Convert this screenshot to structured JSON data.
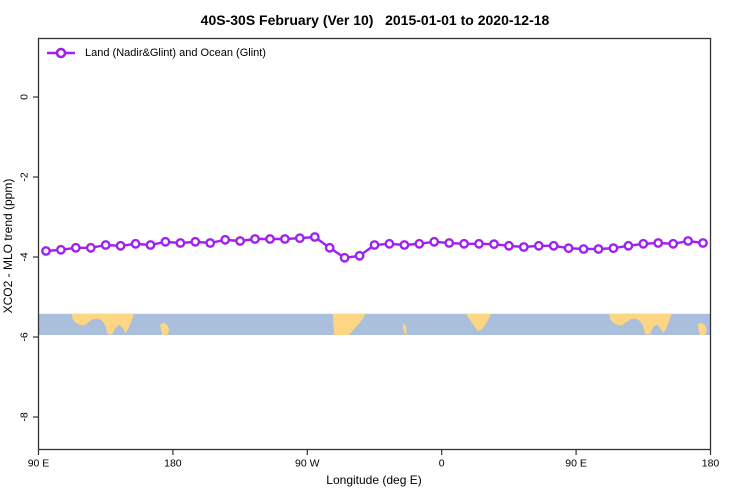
{
  "title": "40S-30S February (Ver 10)   2015-01-01 to 2020-12-18",
  "legend": {
    "label": "Land (Nadir&Glint) and Ocean (Glint)",
    "marker": "open-circle",
    "line_color": "#A020F0"
  },
  "colors": {
    "series": "#A020F0",
    "marker_fill": "#ffffff",
    "ocean": "#a9bfdc",
    "land": "#fdd683",
    "axis": "#333333",
    "text": "#000000"
  },
  "chart_data": {
    "type": "line",
    "title": "40S-30S February (Ver 10)   2015-01-01 to 2020-12-18",
    "xlabel": "Longitude (deg E)",
    "ylabel": "XCO2 - MLO trend (ppm)",
    "xlim": [
      90,
      540
    ],
    "ylim": [
      -8.83,
      1.44
    ],
    "grid": false,
    "legend_position": "top-left",
    "x_ticks": [
      {
        "v": 90,
        "label": "90 E"
      },
      {
        "v": 180,
        "label": "180"
      },
      {
        "v": 270,
        "label": "90 W"
      },
      {
        "v": 360,
        "label": "0"
      },
      {
        "v": 450,
        "label": "90 E"
      },
      {
        "v": 540,
        "label": "180"
      }
    ],
    "y_ticks": [
      {
        "v": 0,
        "label": "0"
      },
      {
        "v": -2,
        "label": "-2"
      },
      {
        "v": -4,
        "label": "-4"
      },
      {
        "v": -6,
        "label": "-6"
      },
      {
        "v": -8,
        "label": "-8"
      }
    ],
    "series": [
      {
        "name": "Land (Nadir&Glint) and Ocean (Glint)",
        "color": "#A020F0",
        "marker": "open-circle",
        "x": [
          95,
          105,
          115,
          125,
          135,
          145,
          155,
          165,
          175,
          185,
          195,
          205,
          215,
          225,
          235,
          245,
          255,
          265,
          275,
          285,
          295,
          305,
          315,
          325,
          335,
          345,
          355,
          365,
          375,
          385,
          395,
          405,
          415,
          425,
          435,
          445,
          455,
          465,
          475,
          485,
          495,
          505,
          515,
          525,
          535
        ],
        "y": [
          -3.85,
          -3.82,
          -3.77,
          -3.77,
          -3.7,
          -3.72,
          -3.67,
          -3.7,
          -3.62,
          -3.65,
          -3.62,
          -3.65,
          -3.57,
          -3.6,
          -3.55,
          -3.55,
          -3.55,
          -3.53,
          -3.5,
          -3.77,
          -4.02,
          -3.97,
          -3.7,
          -3.67,
          -3.7,
          -3.67,
          -3.62,
          -3.65,
          -3.67,
          -3.67,
          -3.68,
          -3.72,
          -3.75,
          -3.72,
          -3.72,
          -3.78,
          -3.8,
          -3.8,
          -3.78,
          -3.72,
          -3.67,
          -3.65,
          -3.67,
          -3.6,
          -3.65
        ]
      }
    ],
    "map_band": {
      "description": "40S-30S latitude strip of world map",
      "y_top": -5.42,
      "y_bottom": -5.95,
      "ocean_color": "#a9bfdc",
      "land_color": "#fdd683",
      "land_polygons": [
        {
          "name": "australia",
          "pts": [
            [
              112,
              0
            ],
            [
              154,
              0
            ],
            [
              152.5,
              0.3
            ],
            [
              150.5,
              0.65
            ],
            [
              148.5,
              0.9
            ],
            [
              146.5,
              0.7
            ],
            [
              144,
              0.5
            ],
            [
              141.5,
              0.65
            ],
            [
              139.5,
              0.95
            ],
            [
              137.5,
              1.0
            ],
            [
              135.8,
              0.9
            ],
            [
              135,
              0.6
            ],
            [
              133,
              0.35
            ],
            [
              130,
              0.22
            ],
            [
              126.5,
              0.25
            ],
            [
              123.5,
              0.4
            ],
            [
              120.5,
              0.55
            ],
            [
              117.5,
              0.52
            ],
            [
              115,
              0.42
            ],
            [
              113,
              0.28
            ]
          ]
        },
        {
          "name": "kangaroo-island",
          "pts": [
            [
              135.8,
              0.56
            ],
            [
              137.6,
              0.56
            ],
            [
              137.2,
              0.78
            ],
            [
              136.1,
              0.8
            ]
          ]
        },
        {
          "name": "new-zealand",
          "pts": [
            [
              171.5,
              0.5
            ],
            [
              174,
              0.42
            ],
            [
              176.5,
              0.55
            ],
            [
              177.5,
              0.8
            ],
            [
              176,
              1.0
            ],
            [
              173,
              1.0
            ],
            [
              172,
              0.75
            ]
          ]
        },
        {
          "name": "south-america",
          "pts": [
            [
              287,
              0
            ],
            [
              309,
              0
            ],
            [
              305.5,
              0.4
            ],
            [
              301,
              0.75
            ],
            [
              298,
              1.0
            ],
            [
              288,
              1.0
            ],
            [
              287.5,
              0.5
            ]
          ]
        },
        {
          "name": "atlantic-island",
          "pts": [
            [
              334.5,
              0.45
            ],
            [
              336.2,
              0.6
            ],
            [
              336.6,
              1.0
            ],
            [
              334.8,
              0.9
            ],
            [
              334,
              0.6
            ]
          ]
        },
        {
          "name": "africa",
          "pts": [
            [
              376.5,
              0
            ],
            [
              393,
              0
            ],
            [
              391,
              0.3
            ],
            [
              388,
              0.65
            ],
            [
              384.5,
              0.85
            ],
            [
              382,
              0.6
            ],
            [
              379,
              0.3
            ],
            [
              377.5,
              0.15
            ]
          ]
        },
        {
          "name": "australia-2",
          "pts": [
            [
              472,
              0
            ],
            [
              514,
              0
            ],
            [
              512.5,
              0.3
            ],
            [
              510.5,
              0.65
            ],
            [
              508.5,
              0.9
            ],
            [
              506.5,
              0.7
            ],
            [
              504,
              0.5
            ],
            [
              501.5,
              0.65
            ],
            [
              499.5,
              0.95
            ],
            [
              497.5,
              1.0
            ],
            [
              495.8,
              0.9
            ],
            [
              495,
              0.6
            ],
            [
              493,
              0.35
            ],
            [
              490,
              0.22
            ],
            [
              486.5,
              0.25
            ],
            [
              483.5,
              0.4
            ],
            [
              480.5,
              0.55
            ],
            [
              477.5,
              0.52
            ],
            [
              475,
              0.42
            ],
            [
              473,
              0.28
            ]
          ]
        },
        {
          "name": "kangaroo-island-2",
          "pts": [
            [
              495.8,
              0.56
            ],
            [
              497.6,
              0.56
            ],
            [
              497.2,
              0.78
            ],
            [
              496.1,
              0.8
            ]
          ]
        },
        {
          "name": "new-zealand-2",
          "pts": [
            [
              531.5,
              0.5
            ],
            [
              534,
              0.42
            ],
            [
              536.5,
              0.55
            ],
            [
              537.5,
              0.8
            ],
            [
              536,
              1.0
            ],
            [
              533,
              1.0
            ],
            [
              532,
              0.75
            ]
          ]
        }
      ]
    }
  }
}
